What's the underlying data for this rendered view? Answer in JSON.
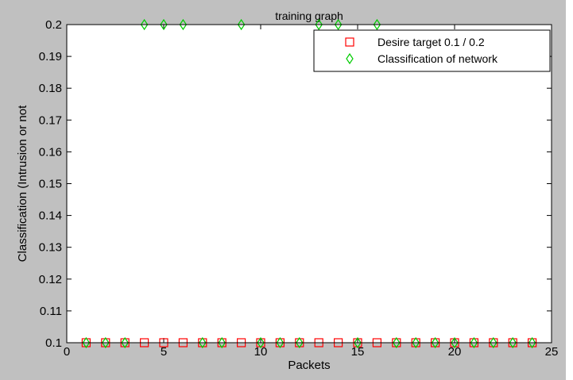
{
  "chart_data": {
    "type": "scatter",
    "title": "training graph",
    "xlabel": "Packets",
    "ylabel": "Classification (Intrusion or not",
    "xlim": [
      0,
      25
    ],
    "ylim": [
      0.1,
      0.2
    ],
    "x_ticks": [
      "0",
      "5",
      "10",
      "15",
      "20",
      "25"
    ],
    "y_ticks": [
      "0.1",
      "0.11",
      "0.12",
      "0.13",
      "0.14",
      "0.15",
      "0.16",
      "0.17",
      "0.18",
      "0.19",
      "0.2"
    ],
    "grid": false,
    "legend_position": "top-right",
    "series": [
      {
        "name": "Desire target   0.1 / 0.2",
        "marker": "square",
        "color": "#ff0000",
        "x": [
          1,
          2,
          3,
          4,
          5,
          6,
          7,
          8,
          9,
          10,
          11,
          12,
          13,
          14,
          15,
          16,
          17,
          18,
          19,
          20,
          21,
          22,
          23,
          24
        ],
        "y": [
          0.1,
          0.1,
          0.1,
          0.1,
          0.1,
          0.1,
          0.1,
          0.1,
          0.1,
          0.1,
          0.1,
          0.1,
          0.1,
          0.1,
          0.1,
          0.1,
          0.1,
          0.1,
          0.1,
          0.1,
          0.1,
          0.1,
          0.1,
          0.1
        ]
      },
      {
        "name": "Classification of network",
        "marker": "diamond",
        "color": "#00cc00",
        "x": [
          1,
          2,
          3,
          4,
          5,
          6,
          7,
          8,
          9,
          10,
          11,
          12,
          13,
          14,
          15,
          16,
          17,
          18,
          19,
          20,
          21,
          22,
          23,
          24
        ],
        "y": [
          0.1,
          0.1,
          0.1,
          0.2,
          0.2,
          0.2,
          0.1,
          0.1,
          0.2,
          0.1,
          0.1,
          0.1,
          0.2,
          0.2,
          0.1,
          0.2,
          0.1,
          0.1,
          0.1,
          0.1,
          0.1,
          0.1,
          0.1,
          0.1
        ]
      }
    ]
  }
}
